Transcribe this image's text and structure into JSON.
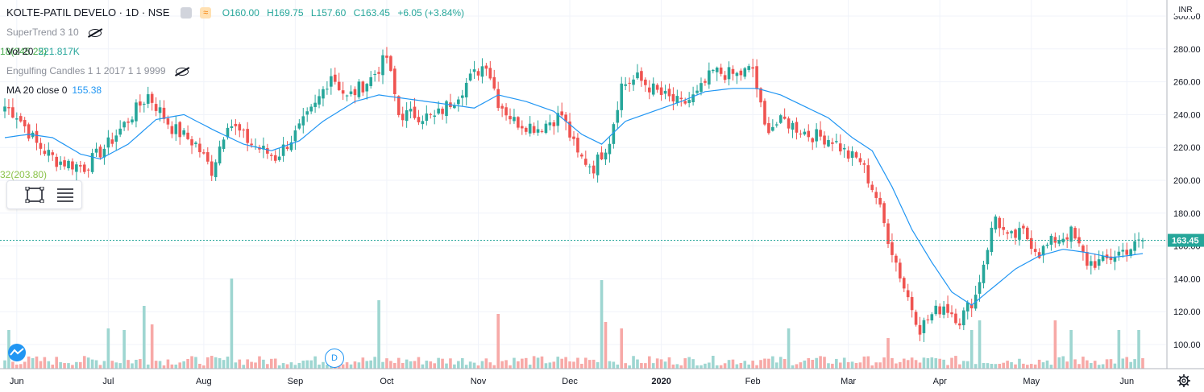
{
  "header": {
    "symbol_title": "KOLTE-PATIL DEVELO · 1D · NSE",
    "ohlc_open": "O160.00",
    "ohlc_high": "H169.75",
    "ohlc_low": "L157.60",
    "ohlc_close": "C163.45",
    "ohlc_change": "+6.05 (+3.84%)"
  },
  "indicators": {
    "supertrend": "SuperTrend 3 10",
    "vol_label": "Vol 20",
    "vol_value": "221.817K",
    "engulfing": "Engulfing Candles 1 1 2017 1 1 9999",
    "ma_label": "MA 20 close 0",
    "ma_value": "155.38",
    "partial_green_1": "18(245.25)",
    "partial_green_2": "32(203.80)"
  },
  "currency": "INR",
  "last_price_tag": "163.45",
  "events": {
    "dividend_marker": "D"
  },
  "colors": {
    "up": "#26a69a",
    "down": "#ef5350",
    "ma": "#2196f3",
    "vol_up": "#9ed6d1",
    "vol_down": "#f7a9a7",
    "price_line": "#26a69a"
  },
  "icons": [
    "hide-eye-icon",
    "rectangle-select-icon",
    "settings-lines-icon",
    "gear-icon",
    "tradingview-logo-icon"
  ],
  "chart_data": {
    "type": "candlestick",
    "title": "KOLTE-PATIL DEVELO · 1D · NSE",
    "ylim": [
      90,
      300
    ],
    "y_ticks": [
      100,
      120,
      140,
      160,
      180,
      200,
      220,
      240,
      260,
      280,
      300
    ],
    "y_tick_labels": [
      "100.00",
      "120.00",
      "140.00",
      "160.00",
      "180.00",
      "200.00",
      "220.00",
      "240.00",
      "260.00",
      "280.00",
      "300.00"
    ],
    "x_tick_labels": [
      "Jun",
      "Jul",
      "Aug",
      "Sep",
      "Oct",
      "Nov",
      "Dec",
      "2020",
      "Feb",
      "Mar",
      "Apr",
      "May",
      "Jun"
    ],
    "x_tick_index": [
      3,
      26,
      50,
      73,
      96,
      119,
      142,
      165,
      188,
      212,
      235,
      258,
      282
    ],
    "monthly_close_path": [
      {
        "i": 0,
        "p": 245
      },
      {
        "i": 3,
        "p": 240
      },
      {
        "i": 8,
        "p": 222
      },
      {
        "i": 13,
        "p": 212
      },
      {
        "i": 20,
        "p": 208
      },
      {
        "i": 26,
        "p": 222
      },
      {
        "i": 32,
        "p": 240
      },
      {
        "i": 36,
        "p": 252
      },
      {
        "i": 42,
        "p": 232
      },
      {
        "i": 48,
        "p": 222
      },
      {
        "i": 52,
        "p": 206
      },
      {
        "i": 56,
        "p": 236
      },
      {
        "i": 62,
        "p": 222
      },
      {
        "i": 68,
        "p": 214
      },
      {
        "i": 73,
        "p": 228
      },
      {
        "i": 78,
        "p": 245
      },
      {
        "i": 82,
        "p": 265
      },
      {
        "i": 86,
        "p": 250
      },
      {
        "i": 92,
        "p": 262
      },
      {
        "i": 96,
        "p": 275
      },
      {
        "i": 99,
        "p": 240
      },
      {
        "i": 103,
        "p": 240
      },
      {
        "i": 108,
        "p": 238
      },
      {
        "i": 113,
        "p": 250
      },
      {
        "i": 117,
        "p": 262
      },
      {
        "i": 121,
        "p": 272
      },
      {
        "i": 124,
        "p": 248
      },
      {
        "i": 128,
        "p": 236
      },
      {
        "i": 134,
        "p": 232
      },
      {
        "i": 140,
        "p": 240
      },
      {
        "i": 144,
        "p": 215
      },
      {
        "i": 148,
        "p": 208
      },
      {
        "i": 152,
        "p": 225
      },
      {
        "i": 155,
        "p": 258
      },
      {
        "i": 159,
        "p": 262
      },
      {
        "i": 165,
        "p": 252
      },
      {
        "i": 170,
        "p": 246
      },
      {
        "i": 174,
        "p": 252
      },
      {
        "i": 178,
        "p": 266
      },
      {
        "i": 184,
        "p": 264
      },
      {
        "i": 188,
        "p": 268
      },
      {
        "i": 191,
        "p": 232
      },
      {
        "i": 196,
        "p": 236
      },
      {
        "i": 202,
        "p": 228
      },
      {
        "i": 208,
        "p": 225
      },
      {
        "i": 212,
        "p": 215
      },
      {
        "i": 215,
        "p": 212
      },
      {
        "i": 219,
        "p": 190
      },
      {
        "i": 222,
        "p": 165
      },
      {
        "i": 226,
        "p": 135
      },
      {
        "i": 230,
        "p": 110
      },
      {
        "i": 233,
        "p": 118
      },
      {
        "i": 236,
        "p": 124
      },
      {
        "i": 240,
        "p": 115
      },
      {
        "i": 244,
        "p": 130
      },
      {
        "i": 247,
        "p": 160
      },
      {
        "i": 249,
        "p": 178
      },
      {
        "i": 252,
        "p": 164
      },
      {
        "i": 256,
        "p": 168
      },
      {
        "i": 260,
        "p": 156
      },
      {
        "i": 264,
        "p": 164
      },
      {
        "i": 268,
        "p": 168
      },
      {
        "i": 272,
        "p": 150
      },
      {
        "i": 276,
        "p": 150
      },
      {
        "i": 280,
        "p": 156
      },
      {
        "i": 284,
        "p": 160
      },
      {
        "i": 286,
        "p": 163.45
      }
    ],
    "ma20_path": [
      {
        "i": 0,
        "p": 226
      },
      {
        "i": 6,
        "p": 228
      },
      {
        "i": 12,
        "p": 226
      },
      {
        "i": 19,
        "p": 216
      },
      {
        "i": 24,
        "p": 213
      },
      {
        "i": 31,
        "p": 222
      },
      {
        "i": 38,
        "p": 237
      },
      {
        "i": 45,
        "p": 240
      },
      {
        "i": 53,
        "p": 230
      },
      {
        "i": 60,
        "p": 222
      },
      {
        "i": 67,
        "p": 218
      },
      {
        "i": 74,
        "p": 224
      },
      {
        "i": 80,
        "p": 236
      },
      {
        "i": 88,
        "p": 248
      },
      {
        "i": 94,
        "p": 252
      },
      {
        "i": 100,
        "p": 250
      },
      {
        "i": 106,
        "p": 248
      },
      {
        "i": 112,
        "p": 246
      },
      {
        "i": 118,
        "p": 244
      },
      {
        "i": 124,
        "p": 252
      },
      {
        "i": 131,
        "p": 248
      },
      {
        "i": 138,
        "p": 242
      },
      {
        "i": 145,
        "p": 228
      },
      {
        "i": 150,
        "p": 222
      },
      {
        "i": 156,
        "p": 236
      },
      {
        "i": 163,
        "p": 242
      },
      {
        "i": 170,
        "p": 248
      },
      {
        "i": 176,
        "p": 254
      },
      {
        "i": 183,
        "p": 256
      },
      {
        "i": 189,
        "p": 256
      },
      {
        "i": 195,
        "p": 252
      },
      {
        "i": 201,
        "p": 245
      },
      {
        "i": 207,
        "p": 238
      },
      {
        "i": 213,
        "p": 226
      },
      {
        "i": 218,
        "p": 218
      },
      {
        "i": 223,
        "p": 196
      },
      {
        "i": 228,
        "p": 170
      },
      {
        "i": 233,
        "p": 150
      },
      {
        "i": 238,
        "p": 132
      },
      {
        "i": 243,
        "p": 124
      },
      {
        "i": 248,
        "p": 134
      },
      {
        "i": 254,
        "p": 146
      },
      {
        "i": 260,
        "p": 154
      },
      {
        "i": 266,
        "p": 158
      },
      {
        "i": 272,
        "p": 156
      },
      {
        "i": 278,
        "p": 153
      },
      {
        "i": 282,
        "p": 154
      },
      {
        "i": 286,
        "p": 155.38
      }
    ],
    "volume_spikes": [
      {
        "i": 1,
        "v": 28,
        "up": true
      },
      {
        "i": 26,
        "v": 30,
        "up": true
      },
      {
        "i": 30,
        "v": 28,
        "up": true
      },
      {
        "i": 35,
        "v": 58,
        "up": true
      },
      {
        "i": 37,
        "v": 35,
        "up": false
      },
      {
        "i": 57,
        "v": 92,
        "up": true
      },
      {
        "i": 94,
        "v": 65,
        "up": true
      },
      {
        "i": 124,
        "v": 48,
        "up": false
      },
      {
        "i": 150,
        "v": 90,
        "up": true
      },
      {
        "i": 151,
        "v": 38,
        "up": false
      },
      {
        "i": 155,
        "v": 30,
        "up": false
      },
      {
        "i": 197,
        "v": 30,
        "up": true
      },
      {
        "i": 222,
        "v": 18,
        "up": false
      },
      {
        "i": 243,
        "v": 28,
        "up": true
      },
      {
        "i": 245,
        "v": 40,
        "up": true
      },
      {
        "i": 264,
        "v": 40,
        "up": false
      },
      {
        "i": 268,
        "v": 28,
        "up": true
      },
      {
        "i": 280,
        "v": 28,
        "up": true
      },
      {
        "i": 285,
        "v": 28,
        "up": true
      }
    ]
  }
}
